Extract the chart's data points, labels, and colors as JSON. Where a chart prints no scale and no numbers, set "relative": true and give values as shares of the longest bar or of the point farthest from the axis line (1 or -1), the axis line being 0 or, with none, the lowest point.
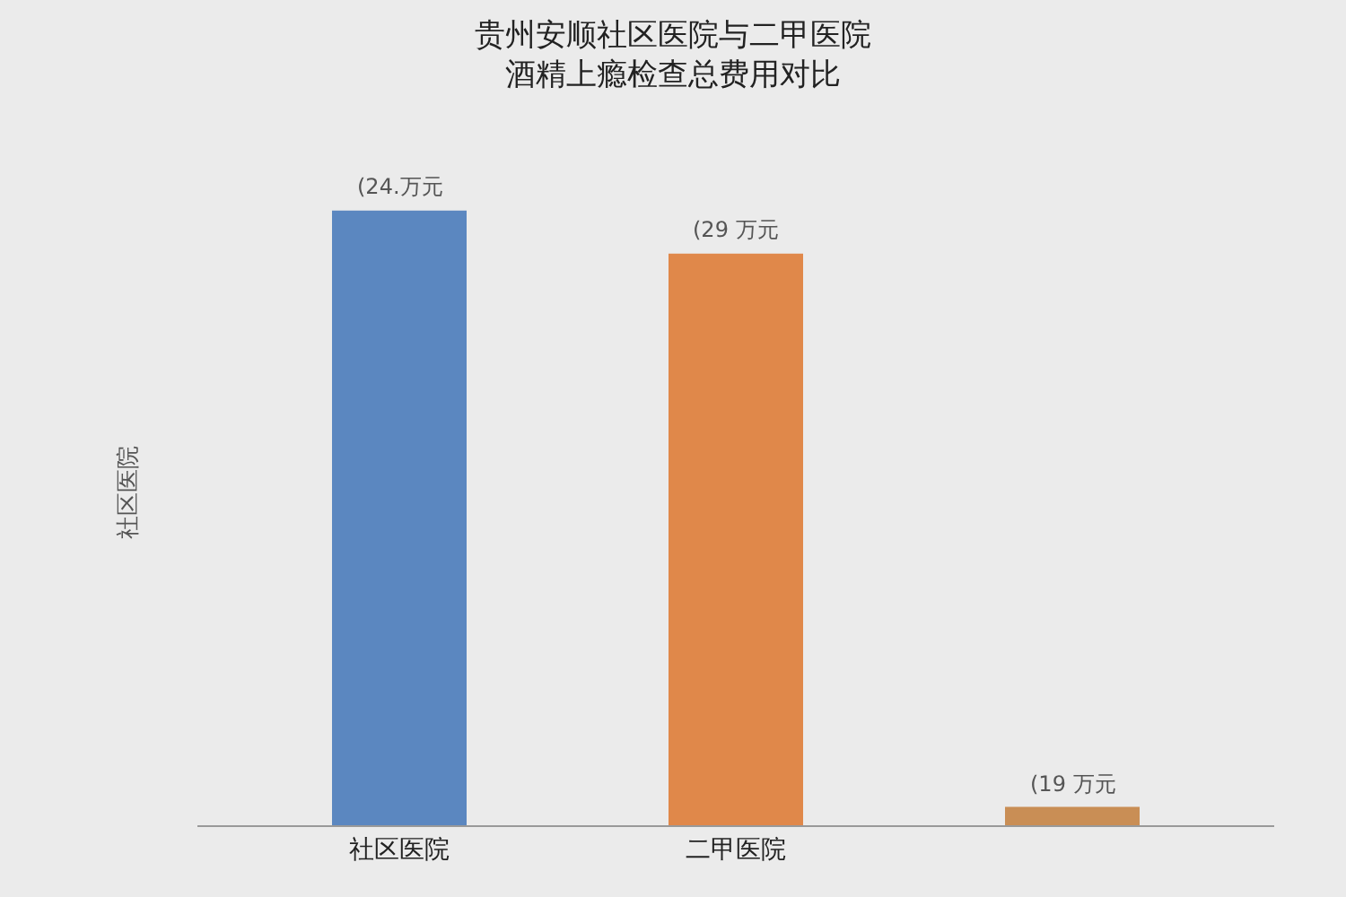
{
  "chart_data": {
    "type": "bar",
    "title": "贵州安顺社区医院与二甲医院酒精上瘾检查总费用对比",
    "ylabel": "社区医院",
    "relative": true,
    "categories": [
      "社区医院",
      "二甲医院",
      null
    ],
    "values": [
      1,
      0.93,
      0.03
    ],
    "colors": [
      "#5b87c0",
      "#e0884a",
      "#c98e55"
    ],
    "annotations": [
      "(24.万元",
      "(29 万元",
      "(19 万元"
    ]
  }
}
